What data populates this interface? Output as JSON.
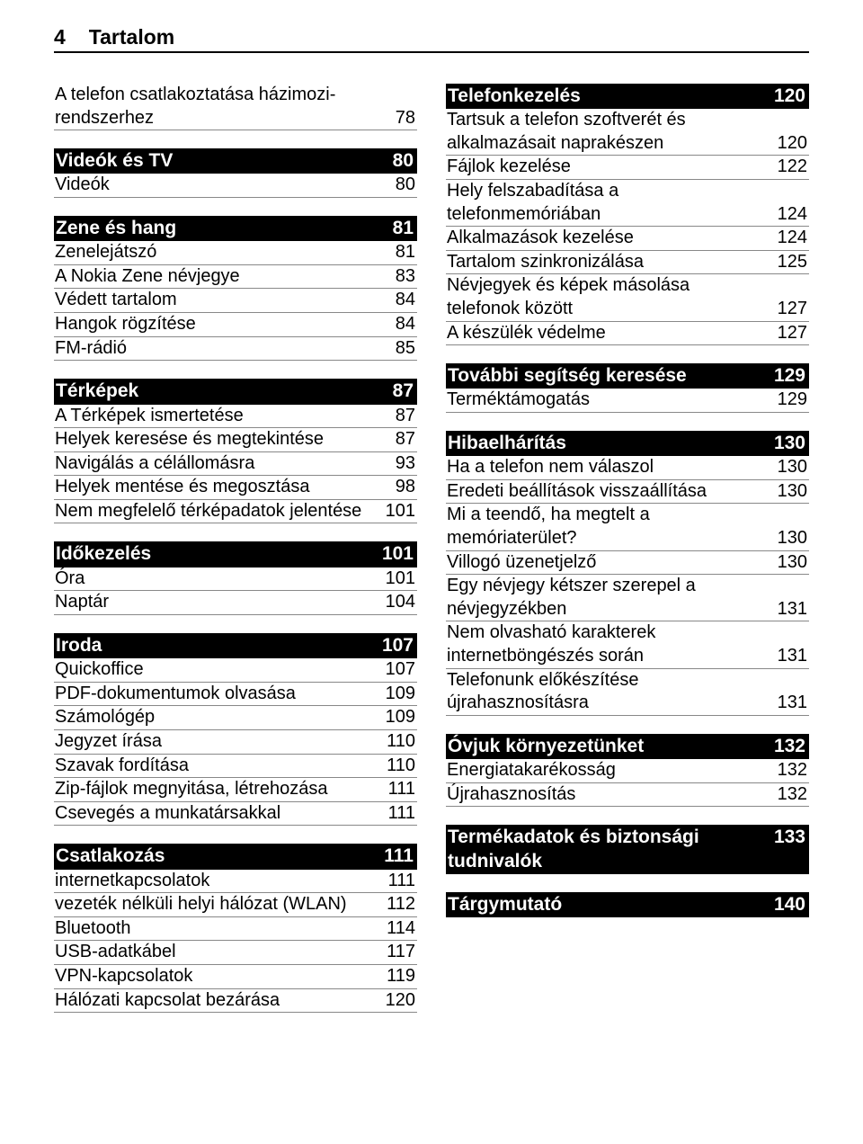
{
  "page_number": "4",
  "page_title": "Tartalom",
  "colors": {
    "text": "#000000",
    "background": "#ffffff",
    "section_bg": "#000000",
    "section_text": "#ffffff",
    "rule": "#888888"
  },
  "typography": {
    "header_font_size_pt": 17,
    "section_font_size_pt": 16,
    "row_font_size_pt": 15,
    "font_family": "Arial"
  },
  "left_column": [
    {
      "head": null,
      "rows": [
        {
          "label": "A telefon csatlakoztatása házimozi-rendszerhez",
          "num": "78"
        }
      ]
    },
    {
      "head": {
        "label": "Videók és TV",
        "num": "80"
      },
      "rows": [
        {
          "label": "Videók",
          "num": "80"
        }
      ]
    },
    {
      "head": {
        "label": "Zene és hang",
        "num": "81"
      },
      "rows": [
        {
          "label": "Zenelejátszó",
          "num": "81"
        },
        {
          "label": "A Nokia Zene névjegye",
          "num": "83"
        },
        {
          "label": "Védett tartalom",
          "num": "84"
        },
        {
          "label": "Hangok rögzítése",
          "num": "84"
        },
        {
          "label": "FM-rádió",
          "num": "85"
        }
      ]
    },
    {
      "head": {
        "label": "Térképek",
        "num": "87"
      },
      "rows": [
        {
          "label": "A Térképek ismertetése",
          "num": "87"
        },
        {
          "label": "Helyek keresése és megtekintése",
          "num": "87"
        },
        {
          "label": "Navigálás a célállomásra",
          "num": "93"
        },
        {
          "label": "Helyek mentése és megosztása",
          "num": "98"
        },
        {
          "label": "Nem megfelelő térképadatok jelentése",
          "num": "101"
        }
      ]
    },
    {
      "head": {
        "label": "Időkezelés",
        "num": "101"
      },
      "rows": [
        {
          "label": "Óra",
          "num": "101"
        },
        {
          "label": "Naptár",
          "num": "104"
        }
      ]
    },
    {
      "head": {
        "label": "Iroda",
        "num": "107"
      },
      "rows": [
        {
          "label": "Quickoffice",
          "num": "107"
        },
        {
          "label": "PDF-dokumentumok olvasása",
          "num": "109"
        },
        {
          "label": "Számológép",
          "num": "109"
        },
        {
          "label": "Jegyzet írása",
          "num": "110"
        },
        {
          "label": "Szavak fordítása",
          "num": "110"
        },
        {
          "label": "Zip-fájlok megnyitása, létrehozása",
          "num": "111"
        },
        {
          "label": "Csevegés a munkatársakkal",
          "num": "111"
        }
      ]
    },
    {
      "head": {
        "label": "Csatlakozás",
        "num": "111"
      },
      "rows": [
        {
          "label": "internetkapcsolatok",
          "num": "111"
        },
        {
          "label": "vezeték nélküli helyi hálózat (WLAN)",
          "num": "112"
        },
        {
          "label": "Bluetooth",
          "num": "114"
        },
        {
          "label": "USB-adatkábel",
          "num": "117"
        },
        {
          "label": "VPN-kapcsolatok",
          "num": "119"
        },
        {
          "label": "Hálózati kapcsolat bezárása",
          "num": "120"
        }
      ]
    }
  ],
  "right_column": [
    {
      "head": {
        "label": "Telefonkezelés",
        "num": "120"
      },
      "rows": [
        {
          "label": "Tartsuk a telefon szoftverét és alkalmazásait naprakészen",
          "num": "120"
        },
        {
          "label": "Fájlok kezelése",
          "num": "122"
        },
        {
          "label": "Hely felszabadítása a telefonmemóriában",
          "num": "124"
        },
        {
          "label": "Alkalmazások kezelése",
          "num": "124"
        },
        {
          "label": "Tartalom szinkronizálása",
          "num": "125"
        },
        {
          "label": "Névjegyek és képek másolása telefonok között",
          "num": "127"
        },
        {
          "label": "A készülék védelme",
          "num": "127"
        }
      ]
    },
    {
      "head": {
        "label": "További segítség keresése",
        "num": "129"
      },
      "rows": [
        {
          "label": "Terméktámogatás",
          "num": "129"
        }
      ]
    },
    {
      "head": {
        "label": "Hibaelhárítás",
        "num": "130"
      },
      "rows": [
        {
          "label": "Ha a telefon nem válaszol",
          "num": "130"
        },
        {
          "label": "Eredeti beállítások visszaállítása",
          "num": "130"
        },
        {
          "label": "Mi a teendő, ha megtelt a memóriaterület?",
          "num": "130"
        },
        {
          "label": "Villogó üzenetjelző",
          "num": "130"
        },
        {
          "label": "Egy névjegy kétszer szerepel a névjegyzékben",
          "num": "131"
        },
        {
          "label": "Nem olvasható karakterek internetböngészés során",
          "num": "131"
        },
        {
          "label": "Telefonunk előkészítése újrahasznosításra",
          "num": "131"
        }
      ]
    },
    {
      "head": {
        "label": "Óvjuk környezetünket",
        "num": "132"
      },
      "rows": [
        {
          "label": "Energiatakarékosság",
          "num": "132"
        },
        {
          "label": "Újrahasznosítás",
          "num": "132"
        }
      ]
    },
    {
      "head": {
        "label": "Termékadatok és biztonsági tudnivalók",
        "num": "133"
      },
      "rows": []
    },
    {
      "head": {
        "label": "Tárgymutató",
        "num": "140"
      },
      "rows": []
    }
  ]
}
